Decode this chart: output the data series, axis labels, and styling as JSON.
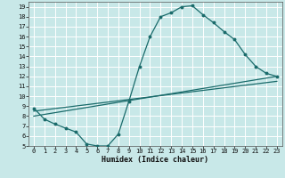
{
  "xlabel": "Humidex (Indice chaleur)",
  "ylabel": "",
  "background_color": "#c8e8e8",
  "grid_color": "#ffffff",
  "line_color": "#1a6b6b",
  "xlim": [
    -0.5,
    23.5
  ],
  "ylim": [
    5,
    19.5
  ],
  "xticks": [
    0,
    1,
    2,
    3,
    4,
    5,
    6,
    7,
    8,
    9,
    10,
    11,
    12,
    13,
    14,
    15,
    16,
    17,
    18,
    19,
    20,
    21,
    22,
    23
  ],
  "yticks": [
    5,
    6,
    7,
    8,
    9,
    10,
    11,
    12,
    13,
    14,
    15,
    16,
    17,
    18,
    19
  ],
  "curve1_x": [
    0,
    1,
    2,
    3,
    4,
    5,
    6,
    7,
    8,
    9,
    10,
    11,
    12,
    13,
    14,
    15,
    16,
    17,
    18,
    19,
    20,
    21,
    22,
    23
  ],
  "curve1_y": [
    8.8,
    7.7,
    7.2,
    6.8,
    6.4,
    5.2,
    5.0,
    5.0,
    6.2,
    9.5,
    13.0,
    16.0,
    18.0,
    18.4,
    19.0,
    19.1,
    18.2,
    17.4,
    16.5,
    15.7,
    14.2,
    13.0,
    12.3,
    12.0
  ],
  "curve2_x": [
    0,
    23
  ],
  "curve2_y": [
    8.0,
    12.0
  ],
  "curve3_x": [
    0,
    23
  ],
  "curve3_y": [
    8.5,
    11.5
  ],
  "curve4_x": [
    0,
    23
  ],
  "curve4_y": [
    8.2,
    11.8
  ]
}
